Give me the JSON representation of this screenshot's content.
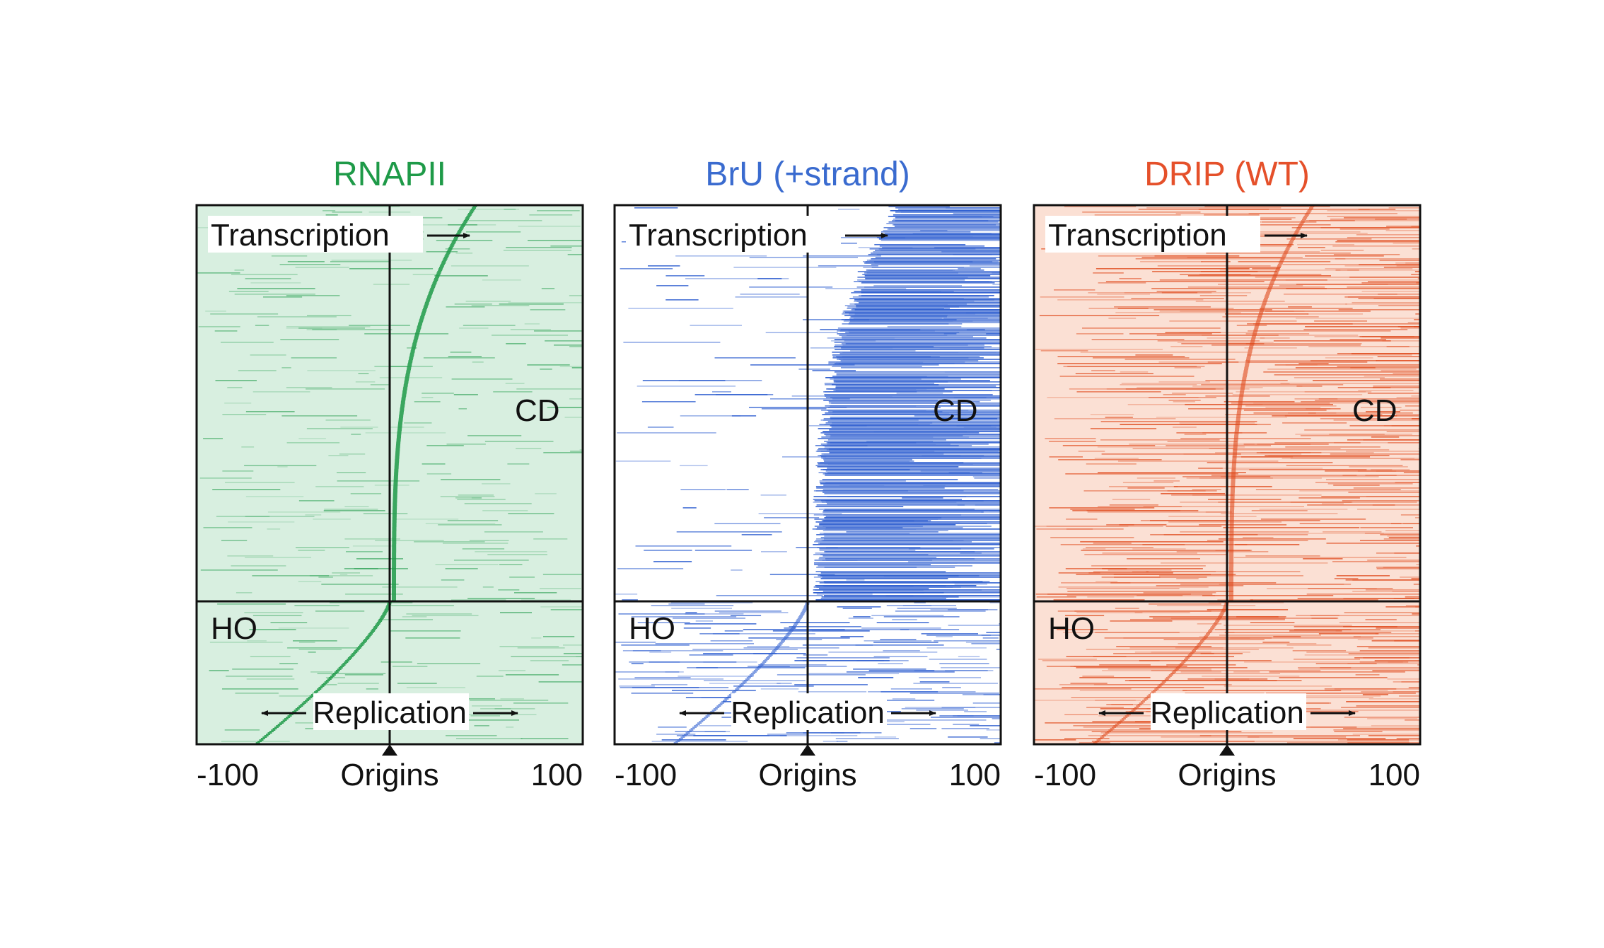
{
  "chart_data": [
    {
      "type": "heatmap",
      "title": "RNAPII",
      "title_color": "#1e9a48",
      "color": "#1e9a48",
      "background": "#d8efe0",
      "pattern": "sparse-diagonal",
      "xlim": [
        -100,
        100
      ],
      "tick_labels": [
        "-100",
        "Origins",
        "100"
      ],
      "annotations": {
        "transcription": "Transcription",
        "replication": "Replication",
        "codirectional": "CD",
        "head_on": "HO"
      }
    },
    {
      "type": "heatmap",
      "title": "BrU (+strand)",
      "title_color": "#3a6bcf",
      "color": "#2f5fd0",
      "background": "#ffffff",
      "pattern": "dense-right",
      "xlim": [
        -100,
        100
      ],
      "tick_labels": [
        "-100",
        "Origins",
        "100"
      ],
      "annotations": {
        "transcription": "Transcription",
        "replication": "Replication",
        "codirectional": "CD",
        "head_on": "HO"
      }
    },
    {
      "type": "heatmap",
      "title": "DRIP (WT)",
      "title_color": "#e5502a",
      "color": "#e04a1c",
      "background": "#fbe0d4",
      "pattern": "dense-uniform",
      "xlim": [
        -100,
        100
      ],
      "tick_labels": [
        "-100",
        "Origins",
        "100"
      ],
      "annotations": {
        "transcription": "Transcription",
        "replication": "Replication",
        "codirectional": "CD",
        "head_on": "HO"
      }
    }
  ]
}
